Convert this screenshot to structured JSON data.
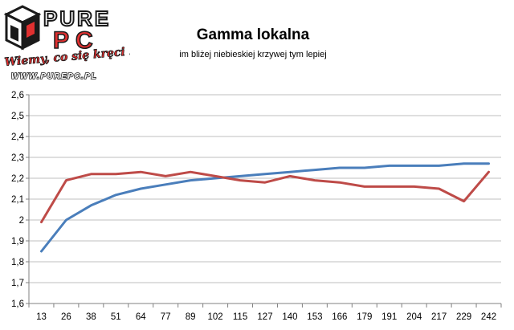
{
  "logo": {
    "brand_top": "PURE",
    "brand_bottom": "PC",
    "slogan": "Wiemy, co się kręci !",
    "url": "WWW.PUREPC.PL"
  },
  "colors": {
    "series_blue": "#4a7ebb",
    "series_red": "#be4b48",
    "grid": "#bfbfbf",
    "logo_red": "#e03030",
    "logo_black": "#1a1a1a"
  },
  "chart_data": {
    "type": "line",
    "title": "Gamma lokalna",
    "subtitle": "im bliżej niebieskiej krzywej tym lepiej",
    "xlabel": "",
    "ylabel": "",
    "categories": [
      "13",
      "26",
      "38",
      "51",
      "64",
      "77",
      "89",
      "102",
      "115",
      "127",
      "140",
      "153",
      "166",
      "179",
      "191",
      "204",
      "217",
      "229",
      "242"
    ],
    "ylim": [
      1.6,
      2.6
    ],
    "yticks": [
      "1,6",
      "1,7",
      "1,8",
      "1,9",
      "2",
      "2,1",
      "2,2",
      "2,3",
      "2,4",
      "2,5",
      "2,6"
    ],
    "grid": true,
    "legend": "none",
    "series": [
      {
        "color": "#4a7ebb",
        "values": [
          1.85,
          2.0,
          2.07,
          2.12,
          2.15,
          2.17,
          2.19,
          2.2,
          2.21,
          2.22,
          2.23,
          2.24,
          2.25,
          2.25,
          2.26,
          2.26,
          2.26,
          2.27,
          2.27
        ]
      },
      {
        "color": "#be4b48",
        "values": [
          1.99,
          2.19,
          2.22,
          2.22,
          2.23,
          2.21,
          2.23,
          2.21,
          2.19,
          2.18,
          2.21,
          2.19,
          2.18,
          2.16,
          2.16,
          2.16,
          2.15,
          2.09,
          2.23
        ]
      }
    ]
  }
}
